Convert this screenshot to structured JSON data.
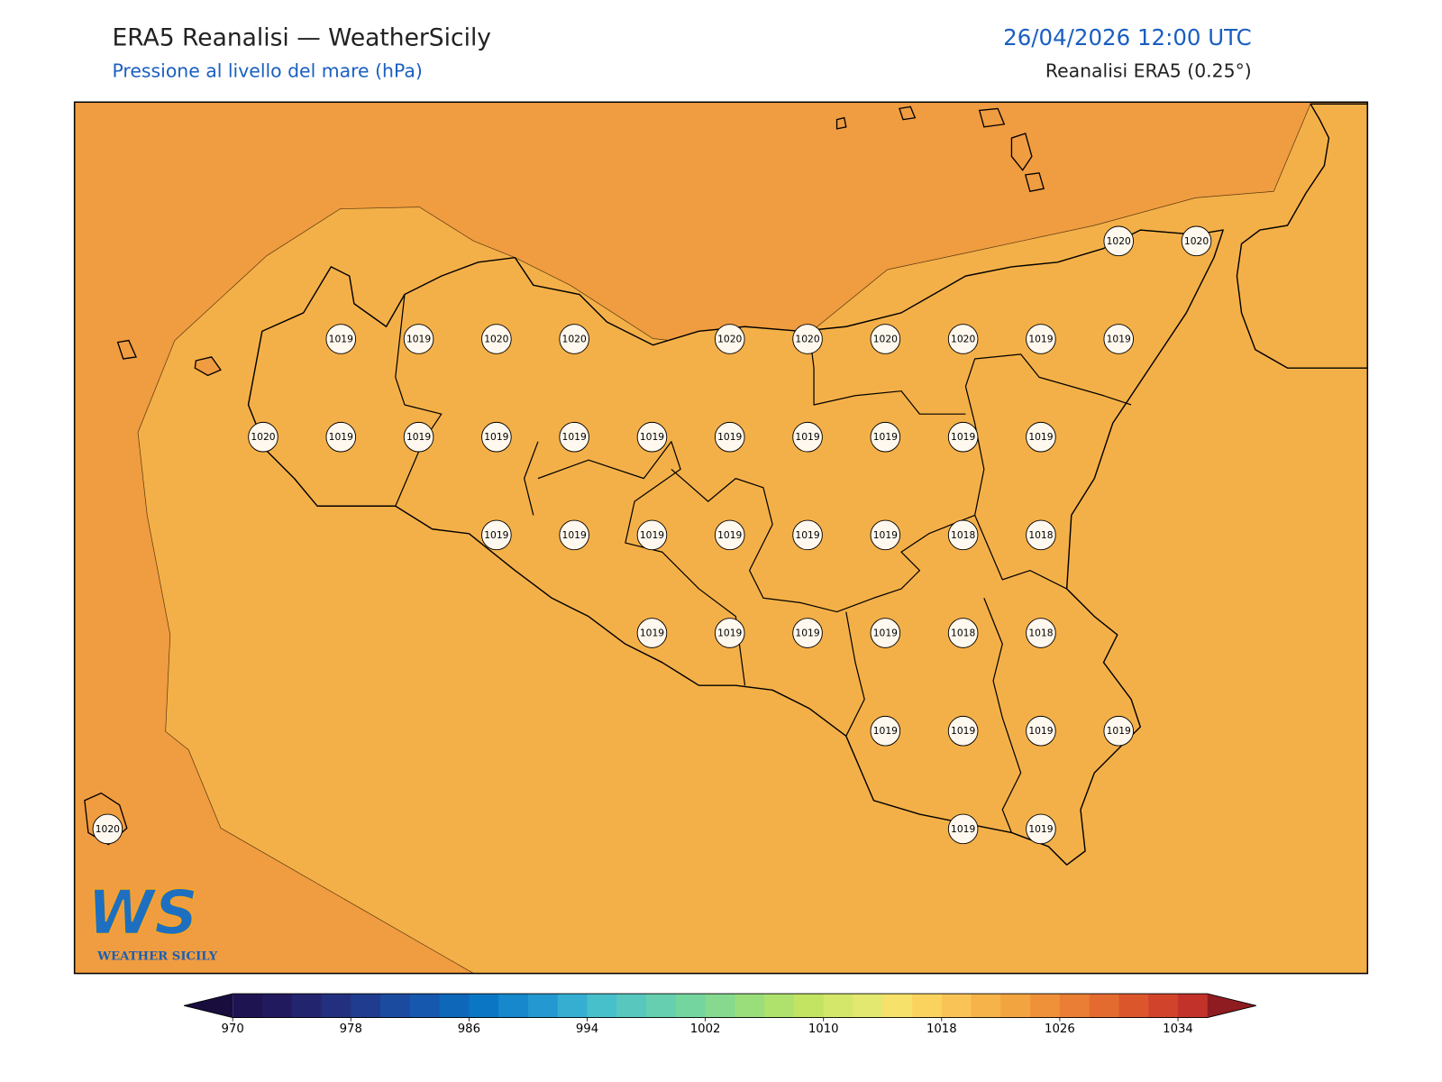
{
  "header": {
    "title": "ERA5 Reanalisi — WeatherSicily",
    "subtitle": "Pressione al livello del mare (hPa)",
    "datetime": "26/04/2026 12:00 UTC",
    "source": "Reanalisi ERA5 (0.25°)"
  },
  "map": {
    "station_grid": [
      [
        null,
        null,
        null,
        null,
        null,
        null,
        null,
        null,
        null,
        null,
        null,
        null,
        null,
        1020,
        1020
      ],
      [
        null,
        null,
        null,
        1019,
        1019,
        1020,
        1020,
        null,
        1020,
        1020,
        1020,
        1020,
        1019,
        1019,
        null
      ],
      [
        null,
        null,
        1020,
        1019,
        1019,
        1019,
        1019,
        1019,
        1019,
        1019,
        1019,
        1019,
        1019,
        null,
        null
      ],
      [
        null,
        null,
        null,
        null,
        null,
        1019,
        1019,
        1019,
        1019,
        1019,
        1019,
        1018,
        1018,
        null,
        null
      ],
      [
        null,
        null,
        null,
        null,
        null,
        null,
        null,
        1019,
        1019,
        1019,
        1019,
        1018,
        1018,
        null,
        null
      ],
      [
        null,
        null,
        null,
        null,
        null,
        null,
        null,
        null,
        null,
        null,
        1019,
        1019,
        1019,
        1019,
        null
      ],
      [
        1020,
        null,
        null,
        null,
        null,
        null,
        null,
        null,
        null,
        null,
        null,
        1019,
        1019,
        null,
        null
      ]
    ]
  },
  "colorbar": {
    "lim": [
      970,
      1036
    ],
    "ticks": [
      970,
      978,
      986,
      994,
      1002,
      1010,
      1018,
      1026,
      1034
    ],
    "colors": [
      "#1f1452",
      "#221a5e",
      "#23246e",
      "#22307f",
      "#1f3c8f",
      "#1b4b9f",
      "#1558ad",
      "#0f67b9",
      "#0b77c4",
      "#1688cb",
      "#2498d0",
      "#35aed2",
      "#48c0cc",
      "#58c8bf",
      "#66cfb0",
      "#74d59f",
      "#86d98e",
      "#9ade7c",
      "#aee26c",
      "#c2e462",
      "#d4e76a",
      "#e2e870",
      "#f6e16a",
      "#fad35e",
      "#f9c455",
      "#f5b349",
      "#f2a440",
      "#ef9138",
      "#ea7e34",
      "#e46b30",
      "#dc562c",
      "#d1442b",
      "#c2322a"
    ],
    "under_color": "#190d3e",
    "over_color": "#8e1c20"
  },
  "logo": {
    "initials": "WS",
    "name": "WEATHER SICILY"
  }
}
